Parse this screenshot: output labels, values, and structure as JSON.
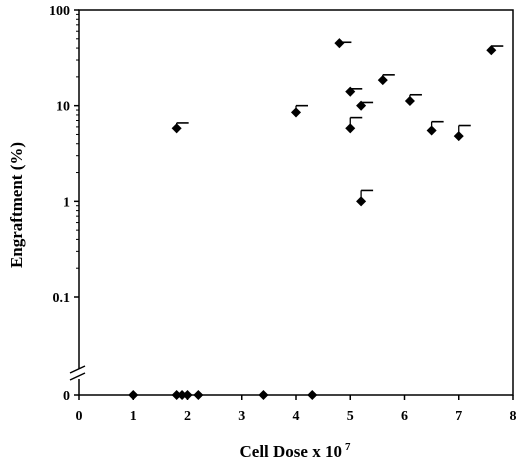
{
  "chart_data": {
    "type": "scatter",
    "xlabel": "Cell Dose x 10",
    "xlabel_exponent": "7",
    "ylabel": "Engraftment (%)",
    "x_range": [
      0,
      8
    ],
    "x_ticks": [
      "0",
      "1",
      "2",
      "3",
      "4",
      "5",
      "6",
      "7",
      "8"
    ],
    "y_scale": "log",
    "y_range": [
      0.1,
      100
    ],
    "y_ticks": [
      "0.1",
      "1",
      "10",
      "100"
    ],
    "y_zero_label": "0",
    "y_axis_break": true,
    "grid": false,
    "legend": "none",
    "marker_color": "#000000",
    "points_positive": [
      {
        "x": 1.8,
        "y": 5.8,
        "err": 6.6
      },
      {
        "x": 4.0,
        "y": 8.5,
        "err": 10.0
      },
      {
        "x": 4.8,
        "y": 45.0,
        "err": 46.0
      },
      {
        "x": 5.0,
        "y": 14.0,
        "err": 15.0
      },
      {
        "x": 5.0,
        "y": 5.8,
        "err": 7.5
      },
      {
        "x": 5.2,
        "y": 10.0,
        "err": 10.8
      },
      {
        "x": 5.2,
        "y": 1.0,
        "err": 1.3
      },
      {
        "x": 5.6,
        "y": 18.5,
        "err": 21.0
      },
      {
        "x": 6.1,
        "y": 11.2,
        "err": 13.0
      },
      {
        "x": 6.5,
        "y": 5.5,
        "err": 6.8
      },
      {
        "x": 7.0,
        "y": 4.8,
        "err": 6.2
      },
      {
        "x": 7.6,
        "y": 38.0,
        "err": 42.0
      }
    ],
    "points_zero": [
      {
        "x": 1.0,
        "y": 0
      },
      {
        "x": 1.8,
        "y": 0
      },
      {
        "x": 1.9,
        "y": 0
      },
      {
        "x": 2.0,
        "y": 0
      },
      {
        "x": 2.2,
        "y": 0
      },
      {
        "x": 3.4,
        "y": 0
      },
      {
        "x": 4.3,
        "y": 0
      }
    ]
  }
}
